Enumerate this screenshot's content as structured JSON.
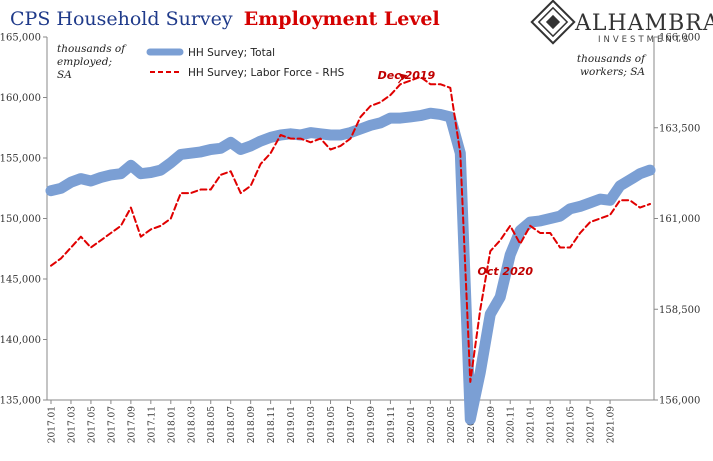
{
  "brand": {
    "name": "ALHAMBRA",
    "sub": "INVESTMENTS",
    "logo_icon": "alhambra-diamond-logo"
  },
  "chart_data": {
    "type": "line",
    "title_part1": "CPS Household Survey",
    "title_part2": "Employment Level",
    "title_part1_color": "#1f3a8a",
    "title_part2_color": "#d40000",
    "left_axis_label": [
      "thousands of",
      "employed;",
      "SA"
    ],
    "right_axis_label": [
      "thousands of",
      "workers; SA"
    ],
    "ylim_left": [
      135000,
      165000
    ],
    "ylim_right": [
      156000,
      166000
    ],
    "yticks_left": [
      "135,000",
      "140,000",
      "145,000",
      "150,000",
      "155,000",
      "160,000",
      "165,000"
    ],
    "yticks_right": [
      "156,000",
      "158,500",
      "161,000",
      "163,500",
      "166,000"
    ],
    "x_labels": [
      "2017.01",
      "2017.03",
      "2017.05",
      "2017.07",
      "2017.09",
      "2017.11",
      "2018.01",
      "2018.03",
      "2018.05",
      "2018.07",
      "2018.09",
      "2018.11",
      "2019.01",
      "2019.03",
      "2019.05",
      "2019.07",
      "2019.09",
      "2019.11",
      "2020.01",
      "2020.03",
      "2020.05",
      "2020.07",
      "2020.09",
      "2020.11",
      "2021.01",
      "2021.03",
      "2021.05",
      "2021.07",
      "2021.09"
    ],
    "grid": false,
    "legend_position": "top-left",
    "series": [
      {
        "name": "HH Survey; Total",
        "axis": "left",
        "color": "#7b9fd4",
        "style": "solid-thick",
        "values": [
          152300,
          152500,
          153000,
          153300,
          153100,
          153400,
          153600,
          153700,
          154400,
          153700,
          153800,
          154000,
          154600,
          155300,
          155400,
          155500,
          155700,
          155800,
          156300,
          155700,
          156000,
          156400,
          156700,
          156900,
          157000,
          156900,
          157100,
          157000,
          156900,
          156900,
          157100,
          157400,
          157700,
          157900,
          158300,
          158300,
          158400,
          158500,
          158700,
          158600,
          158400,
          155400,
          133400,
          137300,
          142100,
          143500,
          147000,
          149000,
          149700,
          149800,
          150000,
          150200,
          150800,
          151000,
          151300,
          151600,
          151500,
          152700,
          153200,
          153700,
          154000
        ]
      },
      {
        "name": "HH Survey; Labor Force - RHS",
        "axis": "right",
        "color": "#e00000",
        "style": "dashed",
        "values": [
          159700,
          159900,
          160200,
          160500,
          160200,
          160400,
          160600,
          160800,
          161300,
          160500,
          160700,
          160800,
          161000,
          161700,
          161700,
          161800,
          161800,
          162200,
          162300,
          161700,
          161900,
          162500,
          162800,
          163300,
          163200,
          163200,
          163100,
          163200,
          162900,
          163000,
          163200,
          163800,
          164100,
          164200,
          164400,
          164700,
          164800,
          164900,
          164700,
          164700,
          164600,
          162800,
          156500,
          158500,
          160100,
          160400,
          160800,
          160300,
          160800,
          160600,
          160600,
          160200,
          160200,
          160600,
          160900,
          161000,
          161100,
          161500,
          161500,
          161300,
          161400
        ]
      }
    ],
    "annotations": [
      {
        "text": "Dec 2019",
        "index": 35,
        "series": 1
      },
      {
        "text": "Oct 2020",
        "index": 45,
        "series": 0
      }
    ]
  }
}
